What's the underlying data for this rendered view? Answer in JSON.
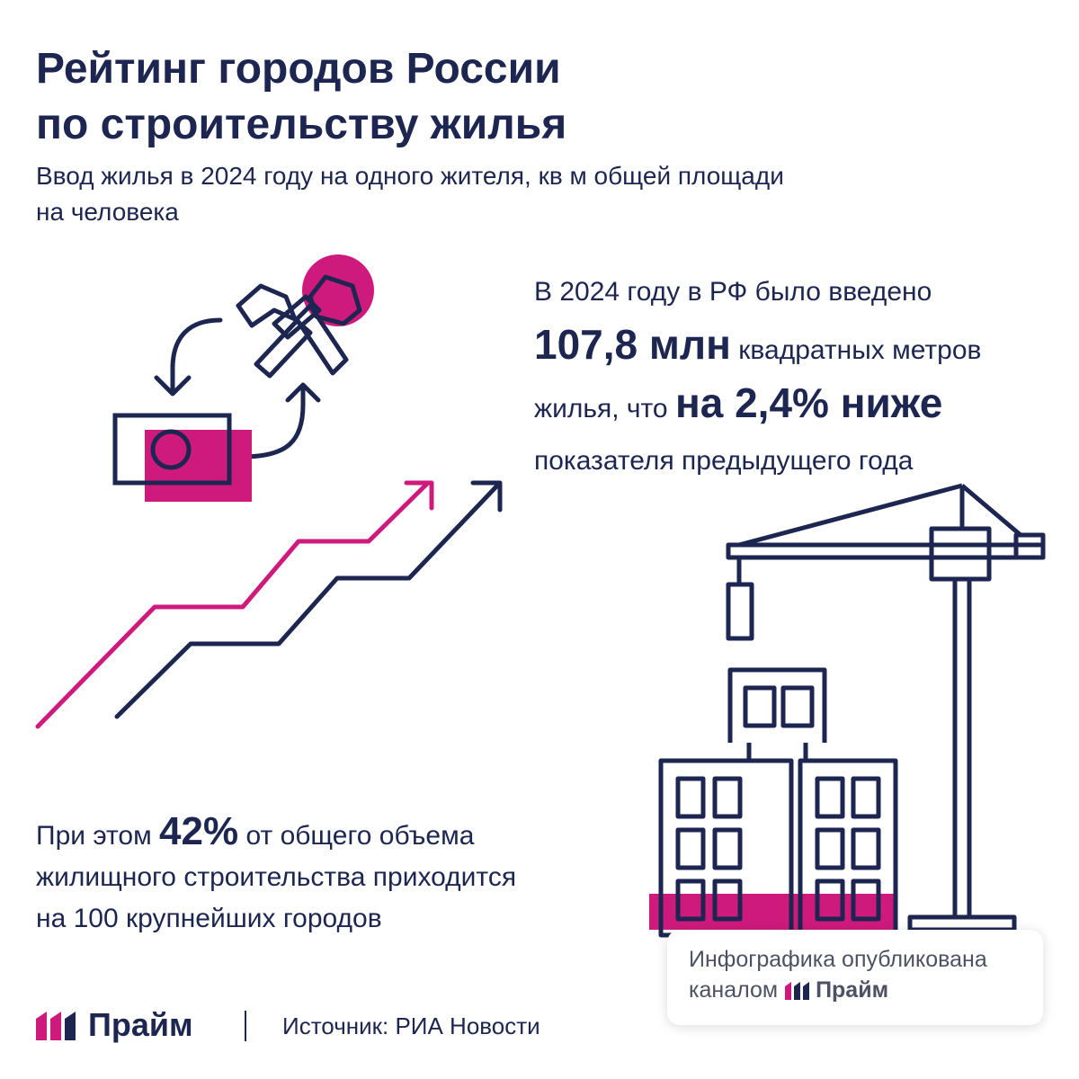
{
  "header": {
    "title_line1": "Рейтинг городов России",
    "title_line2": "по строительству жилья",
    "subtitle_line1": "Ввод жилья в 2024 году на одного жителя, кв м общей площади",
    "subtitle_line2": "на человека"
  },
  "stat": {
    "line1": "В 2024 году в РФ было введено",
    "volume": "107,8 млн",
    "volume_suffix": "квадратных метров",
    "line3_prefix": "жилья, что",
    "decline": "на 2,4% ниже",
    "line4": "показателя предыдущего года"
  },
  "share": {
    "prefix": "При этом",
    "percent": "42%",
    "suffix": "от общего объема",
    "line2": "жилищного строительства приходится",
    "line3": "на 100 крупнейших городов"
  },
  "footer": {
    "brand": "Прайм",
    "source": "Источник: РИА Новости"
  },
  "badge": {
    "line1": "Инфографика опубликована",
    "line2_prefix": "каналом",
    "brand": "Прайм"
  },
  "icons": [
    "hammer-icon",
    "money-icon",
    "cycle-arrow-icon",
    "growth-arrow-icon",
    "crane-icon",
    "building-icon"
  ],
  "colors": {
    "navy": "#1c2650",
    "magenta": "#cf1a7d",
    "gray_text": "#4d5163"
  }
}
